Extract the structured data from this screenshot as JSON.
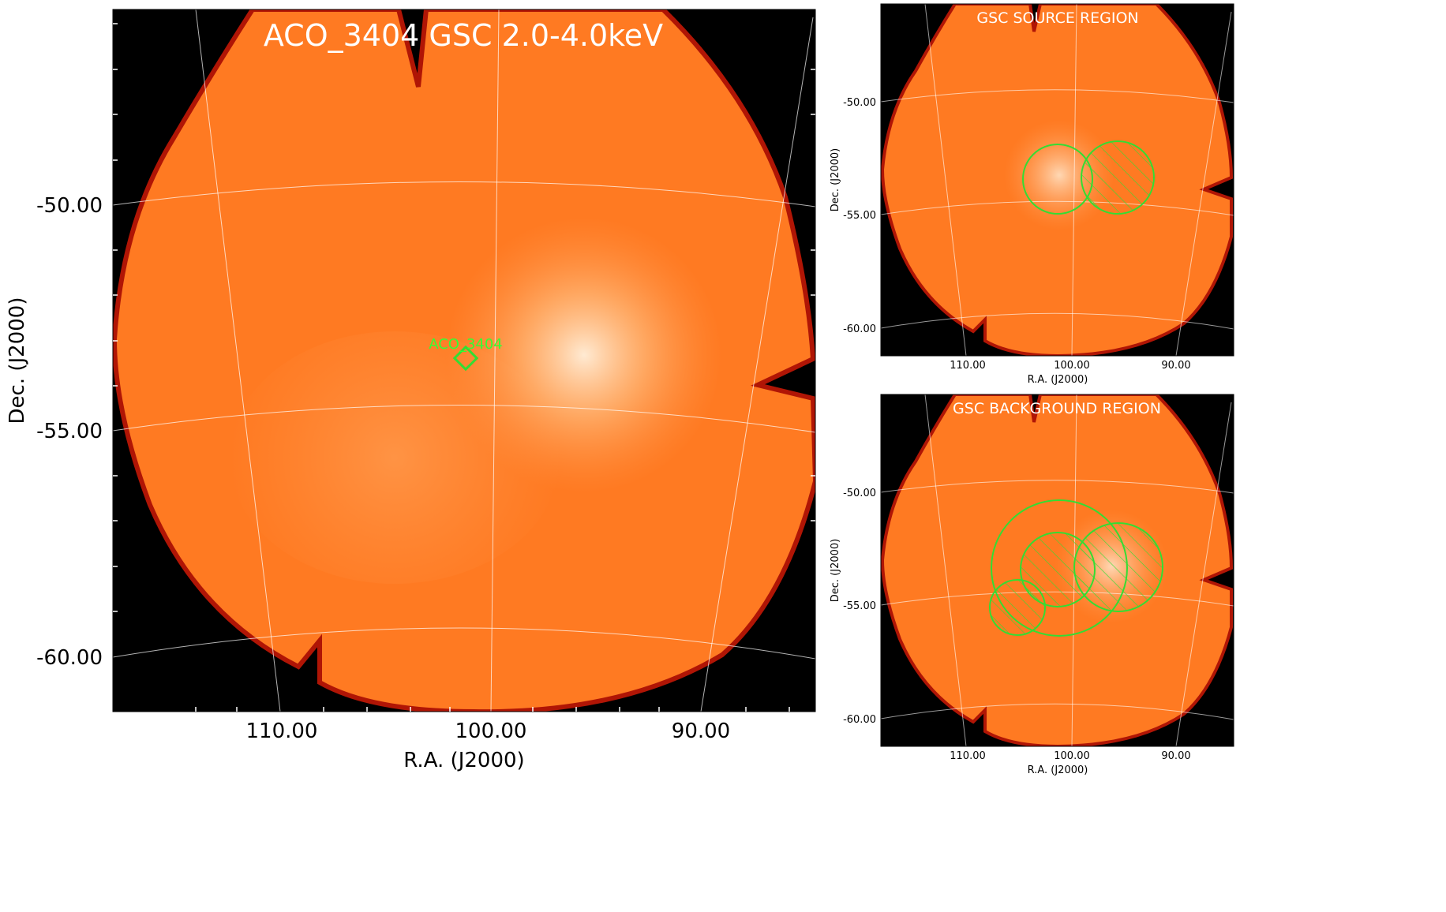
{
  "main_panel": {
    "title": "ACO_3404 GSC 2.0-4.0keV",
    "xlabel": "R.A. (J2000)",
    "ylabel": "Dec. (J2000)",
    "ra_ticks": [
      "110.00",
      "100.00",
      "90.00"
    ],
    "dec_ticks": [
      "-50.00",
      "-55.00",
      "-60.00"
    ],
    "marker_label": "ACO_3404",
    "marker_shape": "diamond"
  },
  "source_panel": {
    "title": "GSC SOURCE REGION",
    "xlabel": "R.A. (J2000)",
    "ylabel": "Dec. (J2000)",
    "ra_ticks": [
      "110.00",
      "100.00",
      "90.00"
    ],
    "dec_ticks": [
      "-50.00",
      "-55.00",
      "-60.00"
    ]
  },
  "background_panel": {
    "title": "GSC BACKGROUND REGION",
    "xlabel": "R.A. (J2000)",
    "ylabel": "Dec. (J2000)",
    "ra_ticks": [
      "110.00",
      "100.00",
      "90.00"
    ],
    "dec_ticks": [
      "-50.00",
      "-55.00",
      "-60.00"
    ]
  },
  "colors": {
    "image_base": "#ff7a22",
    "image_hot": "#fff0dc",
    "image_edge": "#b01505",
    "background": "#000000",
    "region": "#33dd33",
    "grid": "#ffffff"
  }
}
